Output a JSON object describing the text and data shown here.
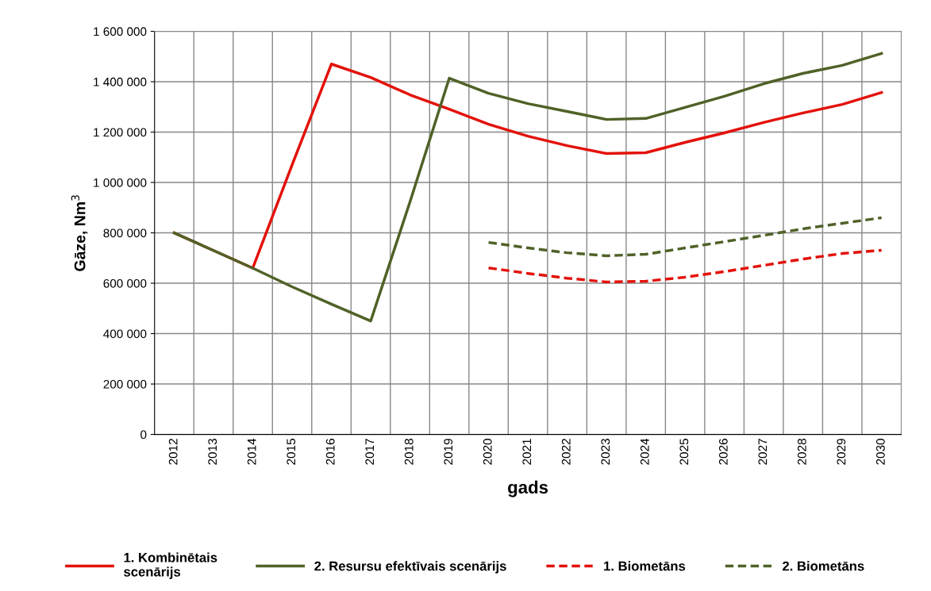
{
  "chart_data": {
    "type": "line",
    "xlabel": "gads",
    "ylabel": "Gāze, Nm$^{3}$",
    "categories": [
      "2012",
      "2013",
      "2014",
      "2015",
      "2016",
      "2017",
      "2018",
      "2019",
      "2020",
      "2021",
      "2022",
      "2023",
      "2024",
      "2025",
      "2026",
      "2027",
      "2028",
      "2029",
      "2030"
    ],
    "series": [
      {
        "name": "1. Kombinētais\nscenārijs",
        "color": "#e3120b",
        "line_style": "solid",
        "values": [
          800000,
          730000,
          660000,
          1070000,
          1470000,
          1417000,
          1348000,
          1291000,
          1231000,
          1184000,
          1146000,
          1115000,
          1118000,
          1159000,
          1197000,
          1238000,
          1276000,
          1310000,
          1357000
        ]
      },
      {
        "name": "2. Resursu efektīvais scenārijs",
        "color": "#4f6228",
        "line_style": "solid",
        "values": [
          800000,
          730000,
          660000,
          586000,
          517000,
          450000,
          923000,
          1414000,
          1354000,
          1313000,
          1282000,
          1250000,
          1254000,
          1298000,
          1342000,
          1392000,
          1433000,
          1465000,
          1512000
        ]
      },
      {
        "name": "1. Biometāns",
        "color": "#e3120b",
        "line_style": "dashed",
        "values": [
          null,
          null,
          null,
          null,
          null,
          null,
          null,
          null,
          661000,
          639000,
          620000,
          605000,
          608000,
          624000,
          646000,
          671000,
          696000,
          718000,
          731000
        ]
      },
      {
        "name": "2. Biometāns",
        "color": "#4f6228",
        "line_style": "dashed",
        "values": [
          null,
          null,
          null,
          null,
          null,
          null,
          null,
          null,
          762000,
          740000,
          721000,
          709000,
          715000,
          740000,
          765000,
          790000,
          816000,
          838000,
          860000
        ]
      }
    ],
    "ylim": [
      0,
      1600000
    ],
    "yticks": [
      {
        "value": 0,
        "label": "0"
      },
      {
        "value": 200000,
        "label": "200 000"
      },
      {
        "value": 400000,
        "label": "400 000"
      },
      {
        "value": 600000,
        "label": "600 000"
      },
      {
        "value": 800000,
        "label": "800 000"
      },
      {
        "value": 1000000,
        "label": "1 000 000"
      },
      {
        "value": 1200000,
        "label": "1 200 000"
      },
      {
        "value": 1400000,
        "label": "1 400 000"
      },
      {
        "value": 1600000,
        "label": "1 600 000"
      }
    ],
    "grid": true,
    "legend": "bottom",
    "marker": "none"
  }
}
